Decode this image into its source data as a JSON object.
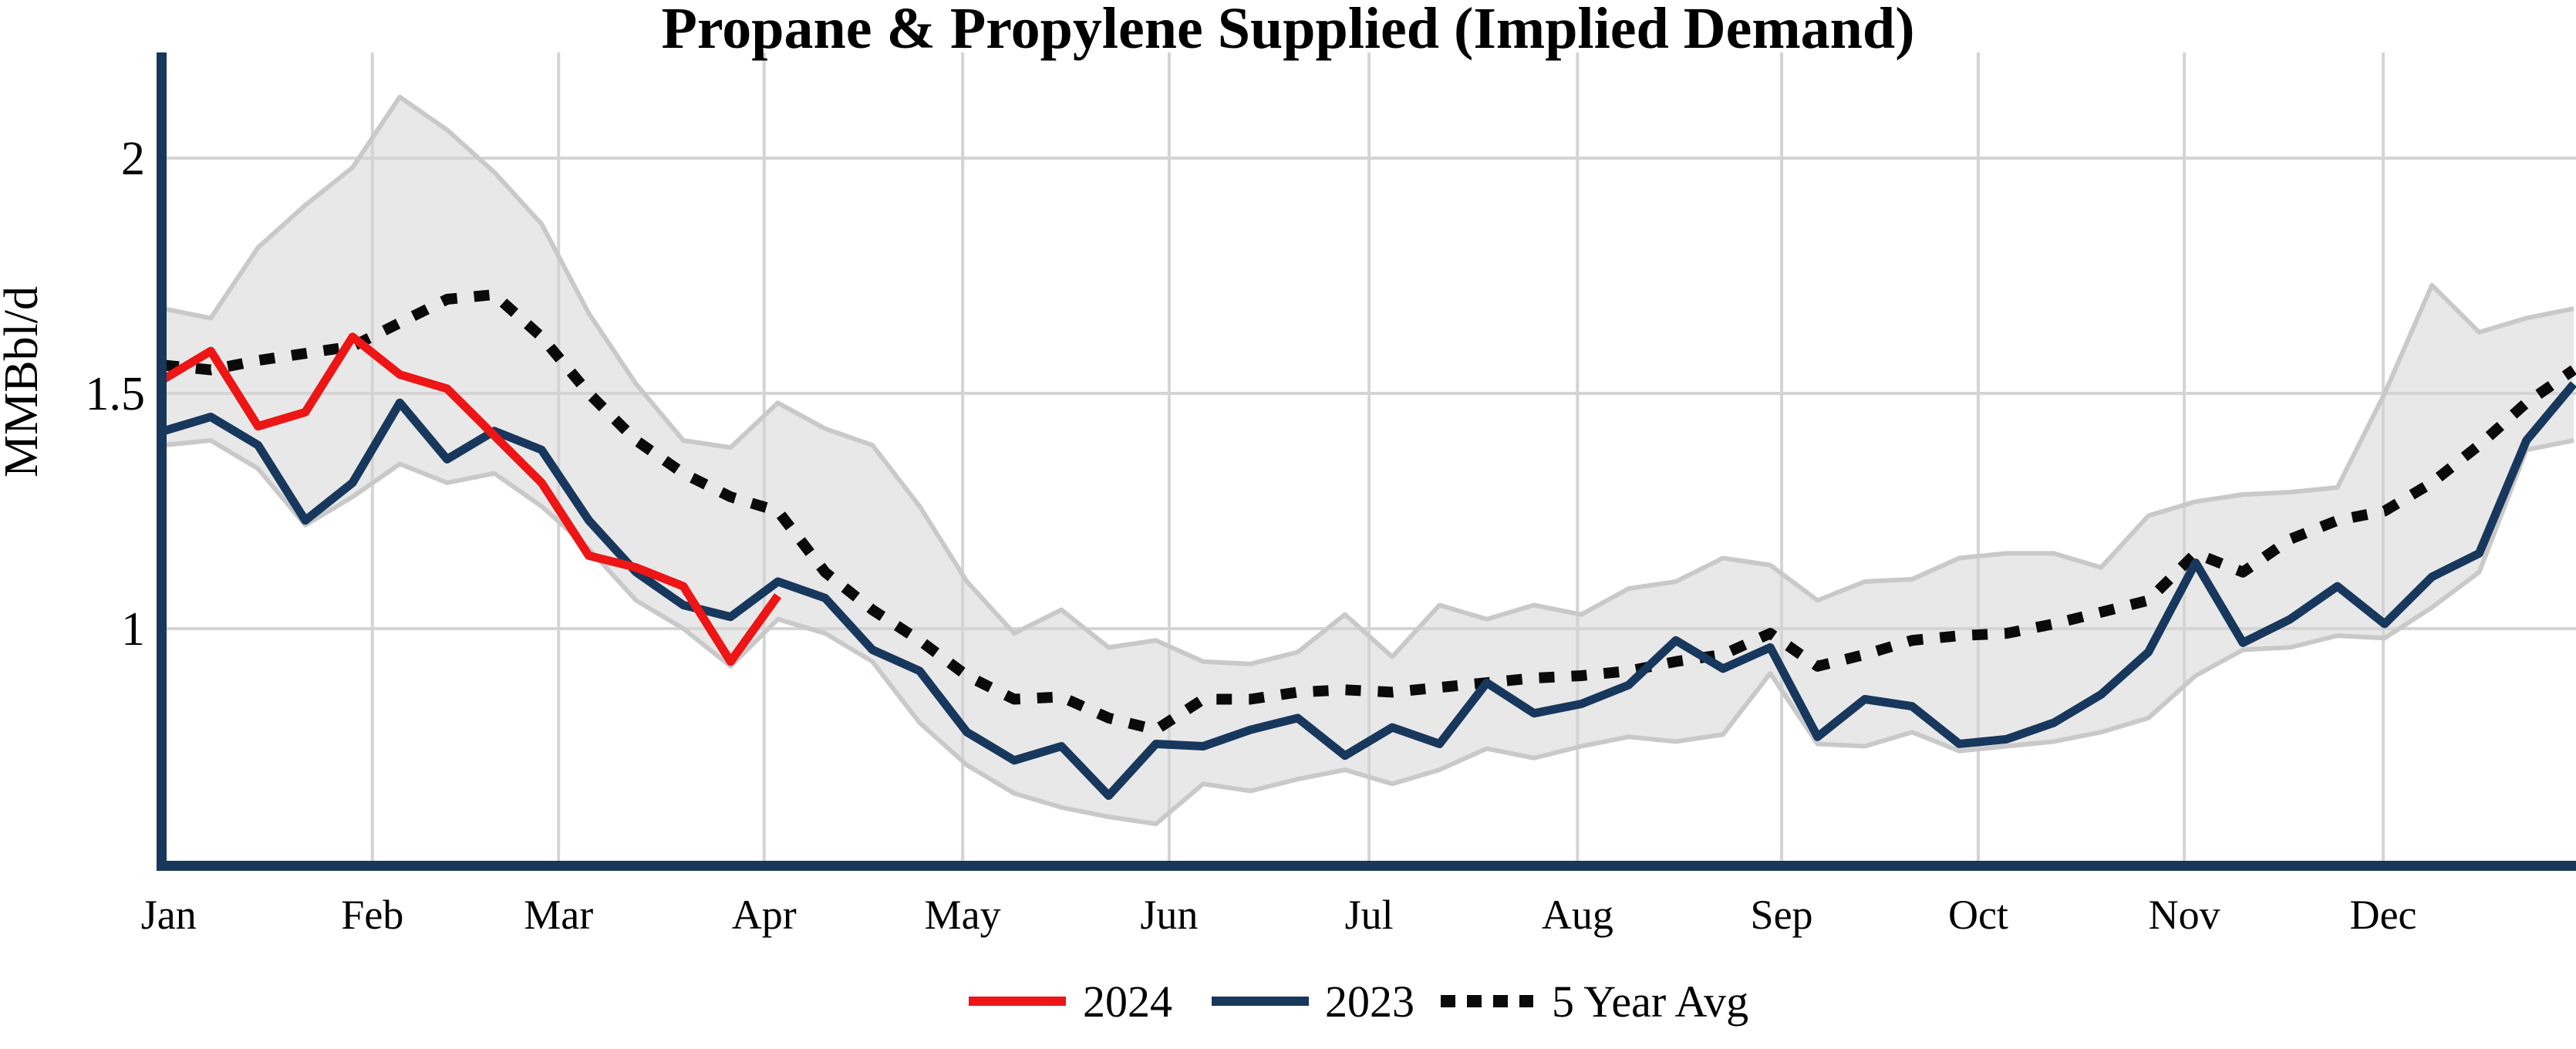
{
  "chart_data": {
    "type": "line",
    "title": "Propane & Propylene Supplied (Implied Demand)",
    "ylabel": "MMBbl/d",
    "x_unit": "week",
    "weeks": 52,
    "y_axis": {
      "ticks": [
        {
          "label": "2",
          "value": 2.0
        },
        {
          "label": "1.5",
          "value": 1.5
        },
        {
          "label": "1",
          "value": 1.0
        }
      ],
      "range": [
        0.5,
        2.22
      ],
      "grid": true
    },
    "x_axis": {
      "months": [
        {
          "label": "Jan",
          "week": 1.11,
          "gridline": false
        },
        {
          "label": "Feb",
          "week": 5.42,
          "gridline": true
        },
        {
          "label": "Mar",
          "week": 9.36,
          "gridline": true
        },
        {
          "label": "Apr",
          "week": 13.71,
          "gridline": true
        },
        {
          "label": "May",
          "week": 17.91,
          "gridline": true
        },
        {
          "label": "Jun",
          "week": 22.28,
          "gridline": true
        },
        {
          "label": "Jul",
          "week": 26.51,
          "gridline": true
        },
        {
          "label": "Aug",
          "week": 30.92,
          "gridline": true
        },
        {
          "label": "Sep",
          "week": 35.24,
          "gridline": true
        },
        {
          "label": "Oct",
          "week": 39.4,
          "gridline": true
        },
        {
          "label": "Nov",
          "week": 43.76,
          "gridline": true
        },
        {
          "label": "Dec",
          "week": 47.97,
          "gridline": true
        }
      ]
    },
    "band": {
      "name": "5-year range",
      "fill": "#e8e8e8",
      "edge": "#c9c9c9",
      "upper": [
        1.68,
        1.66,
        1.81,
        1.9,
        1.98,
        2.13,
        2.06,
        1.97,
        1.86,
        1.67,
        1.52,
        1.4,
        1.385,
        1.48,
        1.425,
        1.39,
        1.26,
        1.1,
        0.99,
        1.04,
        0.96,
        0.975,
        0.93,
        0.925,
        0.95,
        1.03,
        0.94,
        1.05,
        1.02,
        1.05,
        1.03,
        1.085,
        1.1,
        1.15,
        1.135,
        1.06,
        1.1,
        1.105,
        1.15,
        1.16,
        1.16,
        1.13,
        1.24,
        1.27,
        1.285,
        1.29,
        1.3,
        1.5,
        1.73,
        1.63,
        1.66,
        1.68
      ],
      "lower": [
        1.39,
        1.4,
        1.34,
        1.22,
        1.28,
        1.35,
        1.31,
        1.33,
        1.26,
        1.17,
        1.06,
        1.0,
        0.92,
        1.02,
        0.99,
        0.93,
        0.8,
        0.71,
        0.65,
        0.62,
        0.6,
        0.585,
        0.67,
        0.655,
        0.68,
        0.7,
        0.67,
        0.7,
        0.745,
        0.725,
        0.75,
        0.77,
        0.76,
        0.775,
        0.905,
        0.755,
        0.75,
        0.78,
        0.74,
        0.75,
        0.76,
        0.78,
        0.81,
        0.9,
        0.955,
        0.96,
        0.985,
        0.98,
        1.045,
        1.12,
        1.38,
        1.4
      ]
    },
    "series": [
      {
        "name": "2024",
        "color": "#ed1515",
        "line": "solid",
        "start_week": 1,
        "values": [
          1.53,
          1.59,
          1.43,
          1.46,
          1.62,
          1.54,
          1.51,
          1.41,
          1.31,
          1.155,
          1.13,
          1.09,
          0.93,
          1.07
        ]
      },
      {
        "name": "2023",
        "color": "#17375d",
        "line": "solid",
        "start_week": 1,
        "values": [
          1.42,
          1.45,
          1.39,
          1.23,
          1.31,
          1.48,
          1.36,
          1.42,
          1.38,
          1.23,
          1.12,
          1.05,
          1.025,
          1.1,
          1.065,
          0.955,
          0.91,
          0.78,
          0.72,
          0.75,
          0.645,
          0.755,
          0.75,
          0.785,
          0.81,
          0.73,
          0.79,
          0.755,
          0.885,
          0.82,
          0.84,
          0.88,
          0.975,
          0.915,
          0.96,
          0.77,
          0.85,
          0.835,
          0.755,
          0.765,
          0.8,
          0.86,
          0.95,
          1.14,
          0.97,
          1.02,
          1.09,
          1.01,
          1.11,
          1.16,
          1.4,
          1.52
        ]
      },
      {
        "name": "5 Year Avg",
        "color": "#0a0a0a",
        "line": "dotted",
        "start_week": 1,
        "values": [
          1.56,
          1.55,
          1.57,
          1.585,
          1.6,
          1.65,
          1.7,
          1.71,
          1.62,
          1.5,
          1.4,
          1.33,
          1.28,
          1.25,
          1.12,
          1.04,
          0.975,
          0.9,
          0.85,
          0.855,
          0.81,
          0.785,
          0.85,
          0.85,
          0.865,
          0.87,
          0.865,
          0.875,
          0.885,
          0.895,
          0.9,
          0.91,
          0.93,
          0.945,
          0.99,
          0.92,
          0.945,
          0.975,
          0.985,
          0.99,
          1.01,
          1.035,
          1.06,
          1.16,
          1.12,
          1.19,
          1.23,
          1.25,
          1.31,
          1.39,
          1.48,
          1.55
        ]
      }
    ],
    "legend": {
      "position": "bottom-center",
      "items": [
        "2024",
        "2023",
        "5 Year Avg"
      ]
    },
    "colors": {
      "axis": "#17375d",
      "gridline": "#d4d4d4",
      "background": "#ffffff"
    }
  }
}
